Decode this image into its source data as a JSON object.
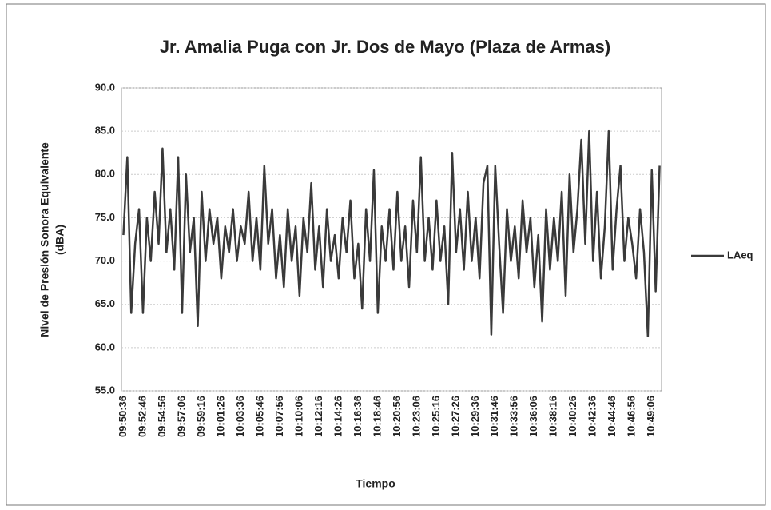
{
  "chart_data": {
    "type": "line",
    "title": "Jr. Amalia Puga con Jr. Dos de Mayo (Plaza de Armas)",
    "xlabel": "Tiempo",
    "ylabel": [
      "Nivel de Presión Sonora Equivalente",
      "(dBA)"
    ],
    "categories": [
      "09:50:36",
      null,
      null,
      null,
      null,
      "09:52:46",
      null,
      null,
      null,
      null,
      "09:54:56",
      null,
      null,
      null,
      null,
      "09:57:06",
      null,
      null,
      null,
      null,
      "09:59:16",
      null,
      null,
      null,
      null,
      "10:01:26",
      null,
      null,
      null,
      null,
      "10:03:36",
      null,
      null,
      null,
      null,
      "10:05:46",
      null,
      null,
      null,
      null,
      "10:07:56",
      null,
      null,
      null,
      null,
      "10:10:06",
      null,
      null,
      null,
      null,
      "10:12:16",
      null,
      null,
      null,
      null,
      "10:14:26",
      null,
      null,
      null,
      null,
      "10:16:36",
      null,
      null,
      null,
      null,
      "10:18:46",
      null,
      null,
      null,
      null,
      "10:20:56",
      null,
      null,
      null,
      null,
      "10:23:06",
      null,
      null,
      null,
      null,
      "10:25:16",
      null,
      null,
      null,
      null,
      "10:27:26",
      null,
      null,
      null,
      null,
      "10:29:36",
      null,
      null,
      null,
      null,
      "10:31:46",
      null,
      null,
      null,
      null,
      "10:33:56",
      null,
      null,
      null,
      null,
      "10:36:06",
      null,
      null,
      null,
      null,
      "10:38:16",
      null,
      null,
      null,
      null,
      "10:40:26",
      null,
      null,
      null,
      null,
      "10:42:36",
      null,
      null,
      null,
      null,
      "10:44:46",
      null,
      null,
      null,
      null,
      "10:46:56",
      null,
      null,
      null,
      null,
      "10:49:06",
      null,
      null
    ],
    "series": [
      {
        "name": "LAeq",
        "color": "#3a3a3a",
        "values": [
          73,
          82,
          64,
          72,
          76,
          64,
          75,
          70,
          78,
          72,
          83,
          71,
          76,
          69,
          82,
          64,
          80,
          71,
          75,
          62.5,
          78,
          70,
          76,
          72,
          75,
          68,
          74,
          71,
          76,
          70,
          74,
          72,
          78,
          70,
          75,
          69,
          81,
          72,
          76,
          68,
          73,
          67,
          76,
          70,
          74,
          66,
          75,
          71,
          79,
          69,
          74,
          67,
          76,
          70,
          73,
          68,
          75,
          71,
          77,
          68,
          72,
          64.5,
          76,
          70,
          80.5,
          64,
          74,
          70,
          76,
          69,
          78,
          70,
          74,
          67,
          77,
          71,
          82,
          70,
          75,
          69,
          77,
          70,
          74,
          65,
          82.5,
          71,
          76,
          69,
          78,
          70,
          75,
          68,
          79,
          81,
          61.5,
          81,
          72,
          64,
          76,
          70,
          74,
          68,
          77,
          71,
          75,
          67,
          73,
          63,
          76,
          69,
          75,
          70,
          78,
          66,
          80,
          71,
          76,
          84,
          72,
          85,
          70,
          78,
          68,
          74,
          85,
          69,
          76,
          81,
          70,
          75,
          72,
          68,
          76,
          71,
          61.3,
          80.5,
          66.5,
          81
        ]
      }
    ],
    "ylim": [
      55,
      90
    ],
    "yticks": [
      {
        "value": 55,
        "label": "55.0"
      },
      {
        "value": 60,
        "label": "60.0"
      },
      {
        "value": 65,
        "label": "65.0"
      },
      {
        "value": 70,
        "label": "70.0"
      },
      {
        "value": 75,
        "label": "75.0"
      },
      {
        "value": 80,
        "label": "80.0"
      },
      {
        "value": 85,
        "label": "85.0"
      },
      {
        "value": 90,
        "label": "90.0"
      }
    ],
    "grid": true,
    "legend": "right"
  }
}
